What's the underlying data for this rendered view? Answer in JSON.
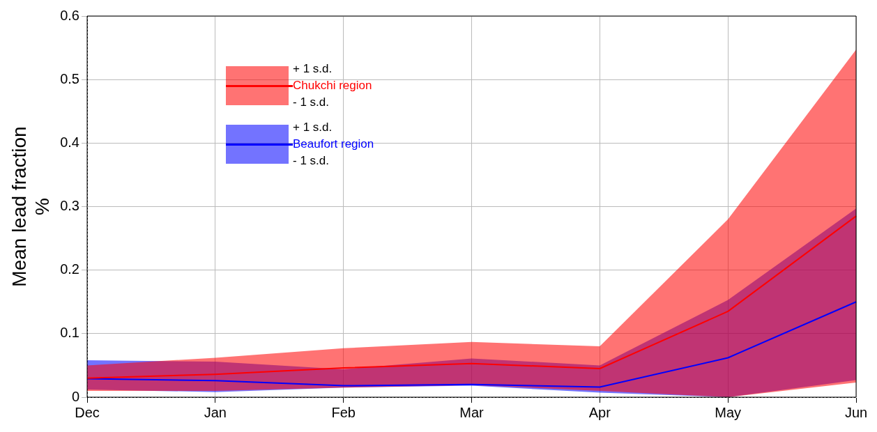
{
  "chart_data": {
    "type": "line",
    "ylabel": "Mean lead fraction\n%",
    "categories": [
      "Dec",
      "Jan",
      "Feb",
      "Mar",
      "Apr",
      "May",
      "Jun"
    ],
    "series": [
      {
        "name": "Chukchi region",
        "color": "#ff0000",
        "values": [
          0.03,
          0.036,
          0.046,
          0.053,
          0.045,
          0.135,
          0.285
        ],
        "lower": [
          0.01,
          0.01,
          0.015,
          0.019,
          0.01,
          0,
          0.023
        ],
        "upper": [
          0.05,
          0.062,
          0.077,
          0.087,
          0.08,
          0.28,
          0.547
        ]
      },
      {
        "name": "Beaufort region",
        "color": "#0000ff",
        "values": [
          0.029,
          0.026,
          0.018,
          0.02,
          0.016,
          0.062,
          0.15
        ],
        "lower": [
          0.012,
          0.008,
          0.015,
          0.018,
          0.007,
          0,
          0.027
        ],
        "upper": [
          0.058,
          0.056,
          0.044,
          0.061,
          0.05,
          0.153,
          0.297
        ]
      }
    ],
    "annotations": [
      "+ 1 s.d.",
      "- 1 s.d."
    ],
    "ylim": [
      0,
      0.6
    ],
    "yticks": [
      0,
      0.1,
      0.2,
      0.3,
      0.4,
      0.5,
      0.6
    ],
    "grid": true,
    "legend": "top left",
    "line_style": "solid",
    "marker": "none"
  }
}
